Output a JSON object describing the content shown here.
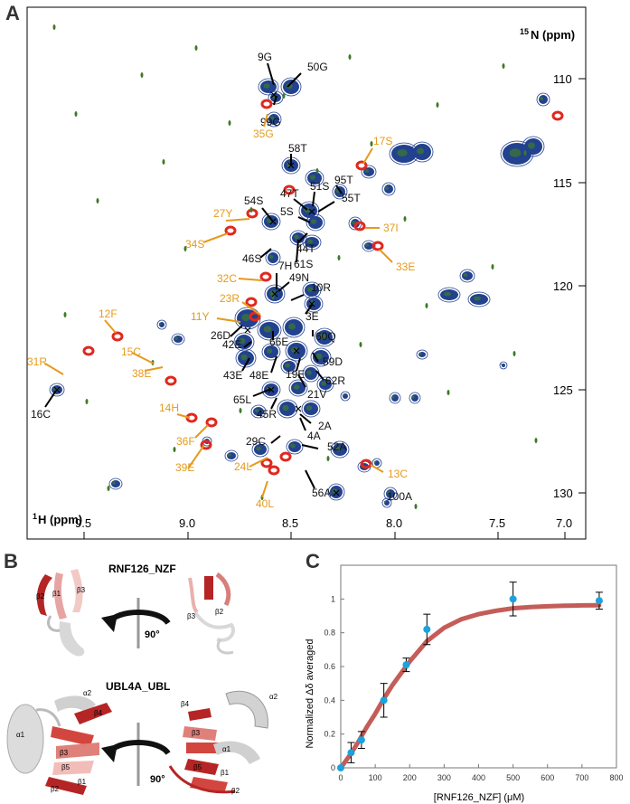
{
  "panel_labels": {
    "a": "A",
    "b": "B",
    "c": "C"
  },
  "panel_a": {
    "x_axis_label_sup": "1",
    "x_axis_label": "H (ppm)",
    "y_axis_label_sup": "15",
    "y_axis_label": "N (ppm)",
    "x_ticks": [
      "9.5",
      "9.0",
      "8.5",
      "8.0",
      "7.5",
      "7.0"
    ],
    "y_ticks": [
      "110",
      "115",
      "120",
      "125",
      "130"
    ],
    "colors": {
      "assigned": "#111111",
      "perturbed": "#e69a1c",
      "apo": "#e0281e",
      "titration": "#22418f",
      "mid": "#3d7a2a"
    },
    "peak_labels_black": [
      "9G",
      "50G",
      "99G",
      "58T",
      "51S",
      "95T",
      "47T",
      "55T",
      "54S",
      "5S",
      "44T",
      "46S",
      "61S",
      "7H",
      "49N",
      "10R",
      "3E",
      "26D",
      "66E",
      "60Q",
      "42E",
      "59D",
      "43E",
      "48E",
      "19E",
      "62R",
      "21V",
      "65L",
      "45R",
      "2A",
      "4A",
      "29C",
      "52A",
      "56A",
      "16C",
      "100A"
    ],
    "peak_labels_orange": [
      "35G",
      "17S",
      "27Y",
      "37I",
      "34S",
      "33E",
      "32C",
      "23R",
      "11Y",
      "12F",
      "15C",
      "31R",
      "38E",
      "14H",
      "36F",
      "39E",
      "24L",
      "13C",
      "40L"
    ]
  },
  "panel_b": {
    "top_title": "RNF126_NZF",
    "bottom_title": "UBL4A_UBL",
    "rotation_top": "90°",
    "rotation_bottom": "90°",
    "labels_top_left": [
      "β2",
      "β1",
      "β3"
    ],
    "labels_top_right": [
      "β3",
      "β2"
    ],
    "labels_bottom_left": [
      "α2",
      "β4",
      "α1",
      "β3",
      "β5",
      "β2",
      "β1"
    ],
    "labels_bottom_right": [
      "α2",
      "β4",
      "β3",
      "α1",
      "β5",
      "β1",
      "β2"
    ]
  },
  "panel_c": {
    "chart_data": {
      "type": "scatter",
      "title": "",
      "xlabel": "[RNF126_NZF] (μM)",
      "ylabel": "Normalized Δδ averaged",
      "x_ticks": [
        "0",
        "100",
        "200",
        "300",
        "400",
        "500",
        "600",
        "700",
        "800"
      ],
      "y_ticks": [
        "0",
        "0.2",
        "0.4",
        "0.6",
        "0.8",
        "1"
      ],
      "xlim": [
        0,
        800
      ],
      "ylim": [
        0,
        1.2
      ],
      "x": [
        0,
        30,
        60,
        125,
        190,
        250,
        500,
        750
      ],
      "y": [
        0,
        0.09,
        0.165,
        0.4,
        0.61,
        0.82,
        1.0,
        0.99
      ],
      "err": [
        0,
        0.06,
        0.05,
        0.1,
        0.04,
        0.09,
        0.1,
        0.05
      ],
      "fit": {
        "name": "fit",
        "x": [
          0,
          25,
          50,
          75,
          100,
          125,
          150,
          175,
          200,
          250,
          300,
          350,
          400,
          450,
          500,
          550,
          600,
          650,
          700,
          750
        ],
        "y": [
          0,
          0.07,
          0.15,
          0.24,
          0.32,
          0.41,
          0.49,
          0.56,
          0.63,
          0.75,
          0.83,
          0.88,
          0.91,
          0.93,
          0.945,
          0.952,
          0.957,
          0.96,
          0.962,
          0.963
        ]
      },
      "point_color": "#1aa3de",
      "fit_color": "#c45c58"
    }
  }
}
